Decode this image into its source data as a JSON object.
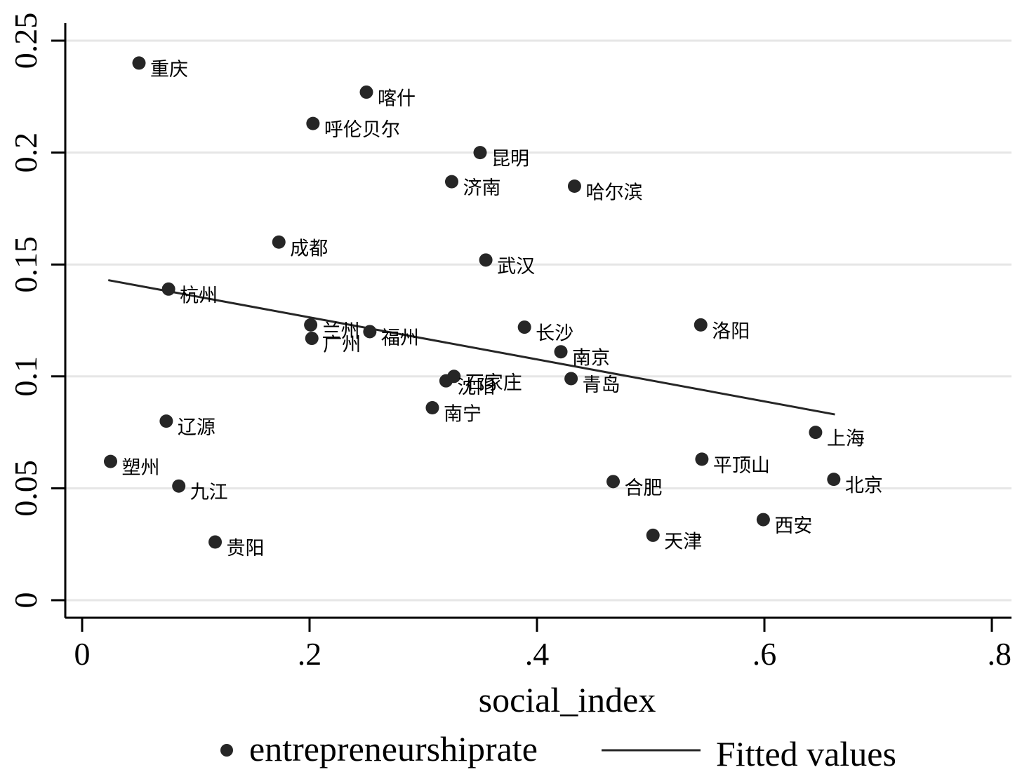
{
  "chart_data": {
    "type": "scatter",
    "title": "",
    "xlabel": "social_index",
    "ylabel": "",
    "xlim": [
      0,
      0.8
    ],
    "ylim": [
      0,
      0.25
    ],
    "xticks": [
      0,
      0.2,
      0.4,
      0.6,
      0.8
    ],
    "xtick_labels": [
      "0",
      ".2",
      ".4",
      ".6",
      ".8"
    ],
    "yticks": [
      0,
      0.05,
      0.1,
      0.15,
      0.2,
      0.25
    ],
    "ytick_labels": [
      "0",
      "0.05",
      "0.1",
      "0.15",
      "0.2",
      "0.25"
    ],
    "grid": true,
    "legend": {
      "position": "bottom",
      "entries": [
        "entrepreneurshiprate",
        "Fitted values"
      ]
    },
    "series": [
      {
        "name": "entrepreneurshiprate",
        "kind": "scatter",
        "points": [
          {
            "label": "重庆",
            "x": 0.05,
            "y": 0.24
          },
          {
            "label": "喀什",
            "x": 0.25,
            "y": 0.227
          },
          {
            "label": "呼伦贝尔",
            "x": 0.203,
            "y": 0.213
          },
          {
            "label": "昆明",
            "x": 0.35,
            "y": 0.2
          },
          {
            "label": "济南",
            "x": 0.325,
            "y": 0.187
          },
          {
            "label": "哈尔滨",
            "x": 0.433,
            "y": 0.185
          },
          {
            "label": "成都",
            "x": 0.173,
            "y": 0.16
          },
          {
            "label": "武汉",
            "x": 0.355,
            "y": 0.152
          },
          {
            "label": "杭州",
            "x": 0.076,
            "y": 0.139
          },
          {
            "label": "兰州",
            "x": 0.201,
            "y": 0.123
          },
          {
            "label": "广州",
            "x": 0.202,
            "y": 0.117
          },
          {
            "label": "福州",
            "x": 0.253,
            "y": 0.12
          },
          {
            "label": "长沙",
            "x": 0.389,
            "y": 0.122
          },
          {
            "label": "洛阳",
            "x": 0.544,
            "y": 0.123
          },
          {
            "label": "南京",
            "x": 0.421,
            "y": 0.111
          },
          {
            "label": "石家庄",
            "x": 0.327,
            "y": 0.1
          },
          {
            "label": "沈阳",
            "x": 0.32,
            "y": 0.098
          },
          {
            "label": "青岛",
            "x": 0.43,
            "y": 0.099
          },
          {
            "label": "南宁",
            "x": 0.308,
            "y": 0.086
          },
          {
            "label": "辽源",
            "x": 0.074,
            "y": 0.08
          },
          {
            "label": "上海",
            "x": 0.645,
            "y": 0.075
          },
          {
            "label": "塑州",
            "x": 0.025,
            "y": 0.062
          },
          {
            "label": "平顶山",
            "x": 0.545,
            "y": 0.063
          },
          {
            "label": "九江",
            "x": 0.085,
            "y": 0.051
          },
          {
            "label": "合肥",
            "x": 0.467,
            "y": 0.053
          },
          {
            "label": "北京",
            "x": 0.661,
            "y": 0.054
          },
          {
            "label": "西安",
            "x": 0.599,
            "y": 0.036
          },
          {
            "label": "天津",
            "x": 0.502,
            "y": 0.029
          },
          {
            "label": "贵阳",
            "x": 0.117,
            "y": 0.026
          }
        ]
      },
      {
        "name": "Fitted values",
        "kind": "line",
        "x": [
          0.023,
          0.662
        ],
        "y": [
          0.143,
          0.083
        ]
      }
    ]
  }
}
